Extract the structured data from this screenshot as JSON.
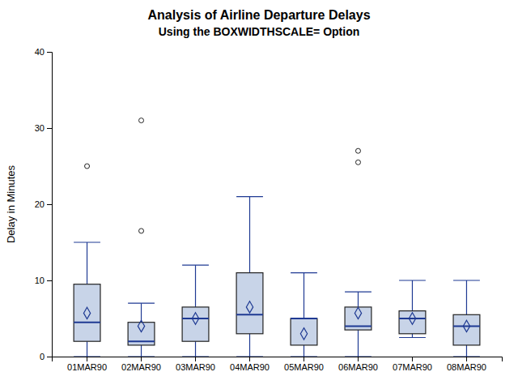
{
  "chart_data": {
    "type": "box",
    "title": "Analysis of Airline Departure Delays",
    "subtitle": "Using the BOXWIDTHSCALE= Option",
    "y_label": "Delay in Minutes",
    "categories": [
      "01MAR90",
      "02MAR90",
      "03MAR90",
      "04MAR90",
      "05MAR90",
      "06MAR90",
      "07MAR90",
      "08MAR90"
    ],
    "boxes": [
      {
        "q1": 2.0,
        "median": 4.5,
        "q3": 9.5,
        "mean": 5.7,
        "whisker_low": 0.0,
        "whisker_high": 15.0,
        "outliers": [
          25.0
        ]
      },
      {
        "q1": 1.5,
        "median": 2.0,
        "q3": 4.5,
        "mean": 4.0,
        "whisker_low": 0.0,
        "whisker_high": 7.0,
        "outliers": [
          16.5,
          31.0
        ]
      },
      {
        "q1": 2.0,
        "median": 5.0,
        "q3": 6.5,
        "mean": 5.0,
        "whisker_low": 0.0,
        "whisker_high": 12.0,
        "outliers": []
      },
      {
        "q1": 3.0,
        "median": 5.5,
        "q3": 11.0,
        "mean": 6.5,
        "whisker_low": 0.0,
        "whisker_high": 21.0,
        "outliers": []
      },
      {
        "q1": 1.5,
        "median": 5.0,
        "q3": 5.0,
        "mean": 3.0,
        "whisker_low": 0.0,
        "whisker_high": 11.0,
        "outliers": []
      },
      {
        "q1": 3.5,
        "median": 4.0,
        "q3": 6.5,
        "mean": 5.7,
        "whisker_low": 0.0,
        "whisker_high": 8.5,
        "outliers": [
          25.5,
          27.0
        ]
      },
      {
        "q1": 3.0,
        "median": 5.0,
        "q3": 6.0,
        "mean": 5.0,
        "whisker_low": 2.5,
        "whisker_high": 10.0,
        "outliers": []
      },
      {
        "q1": 1.5,
        "median": 4.0,
        "q3": 5.5,
        "mean": 4.0,
        "whisker_low": 0.0,
        "whisker_high": 10.0,
        "outliers": []
      }
    ],
    "color": "#c8d4e8",
    "ylim": [
      0,
      40
    ],
    "yticks": [
      0,
      10,
      20,
      30,
      40
    ],
    "grid": false
  }
}
